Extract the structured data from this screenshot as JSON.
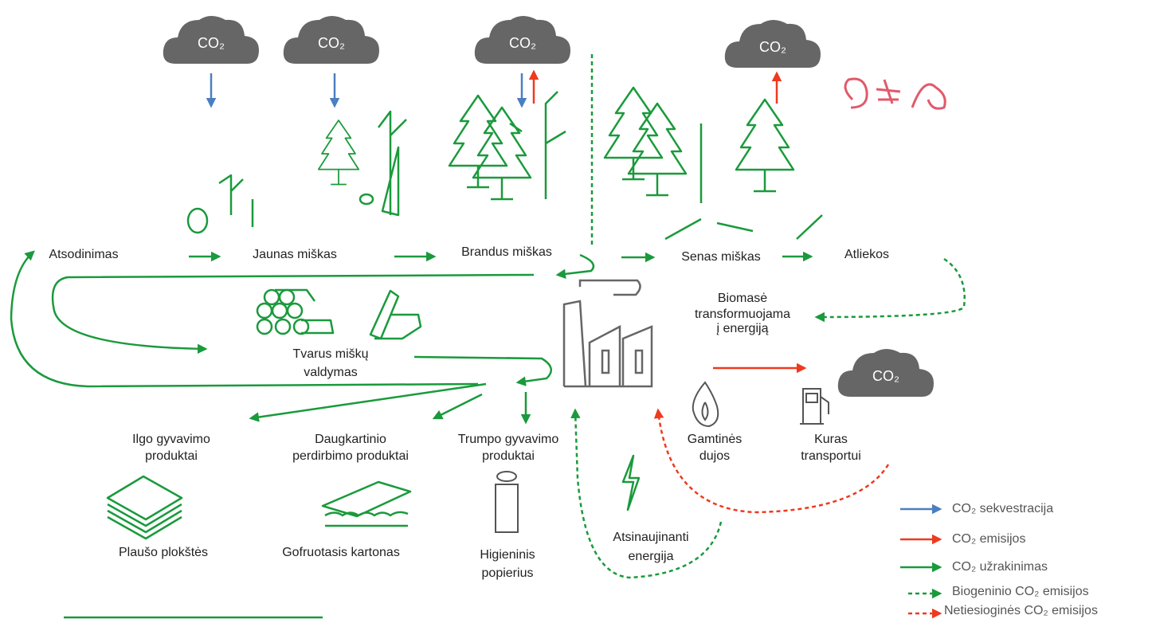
{
  "clouds": [
    "CO₂",
    "CO₂",
    "CO₂",
    "CO₂",
    "CO₂"
  ],
  "nodes": [
    [
      "Atsodinimas"
    ],
    [
      "Jaunas miškas"
    ],
    [
      "Brandus miškas"
    ],
    [
      "Senas miškas"
    ],
    [
      "Atliekos"
    ],
    [
      "Biomasė",
      "transformuojama",
      "į energiją"
    ],
    [
      "Tvarus miškų",
      "valdymas"
    ],
    [
      "Ilgo gyvavimo",
      "produktai"
    ],
    [
      "Daugkartinio",
      "perdirbimo produktai"
    ],
    [
      "Trumpo gyvavimo",
      "produktai"
    ],
    [
      "Gamtinės",
      "dujos"
    ],
    [
      "Kuras",
      "transportui"
    ],
    [
      "Plaušo plokštės"
    ],
    [
      "Gofruotasis kartonas"
    ],
    [
      "Higieninis",
      "popierius"
    ],
    [
      "Atsinaujinanti",
      "energija"
    ]
  ],
  "legend": [
    "CO₂ sekvestracija",
    "CO₂ emisijos",
    "CO₂ užrakinimas",
    "Biogeninio CO₂ emisijos",
    "Netiesioginės CO₂ emisijos"
  ]
}
